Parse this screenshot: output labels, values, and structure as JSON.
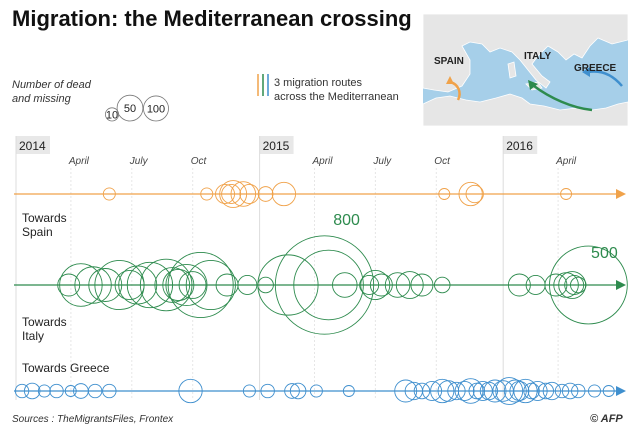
{
  "title": "Migration: the Mediterranean crossing",
  "source": "Sources : TheMigrantsFiles, Frontex",
  "credit": "© AFP",
  "legend": {
    "size_label_line1": "Number of dead",
    "size_label_line2": "and missing",
    "size_values": [
      10,
      50,
      100
    ],
    "routes_label_line1": "3 migration routes",
    "routes_label_line2": "across the Mediterranean"
  },
  "map": {
    "labels": [
      "SPAIN",
      "ITALY",
      "GREECE"
    ],
    "colors": {
      "sea": "#a6cfe9",
      "land": "#e6e6e6",
      "border": "#ffffff"
    }
  },
  "colors": {
    "spain": "#f0a24a",
    "italy": "#2e8b4e",
    "greece": "#3f8fce"
  },
  "chart_data": {
    "type": "scatter",
    "x_unit": "month",
    "x_range": [
      "2014-01",
      "2016-06"
    ],
    "axis": {
      "years": [
        {
          "label": "2014",
          "month": 0
        },
        {
          "label": "2015",
          "month": 12
        },
        {
          "label": "2016",
          "month": 24
        }
      ],
      "months": [
        {
          "label": "April",
          "month": 3
        },
        {
          "label": "July",
          "month": 6
        },
        {
          "label": "Oct",
          "month": 9
        },
        {
          "label": "April",
          "month": 15
        },
        {
          "label": "July",
          "month": 18
        },
        {
          "label": "Oct",
          "month": 21
        },
        {
          "label": "April",
          "month": 27
        }
      ]
    },
    "size_encoding": "circle area proportional to number of dead and missing",
    "series": [
      {
        "name": "Towards Spain",
        "label_line1": "Towards",
        "label_line2": "Spain",
        "color": "#f0a24a",
        "points": [
          {
            "month": 4.4,
            "value": 12
          },
          {
            "month": 9.2,
            "value": 12
          },
          {
            "month": 10.1,
            "value": 30
          },
          {
            "month": 10.4,
            "value": 30
          },
          {
            "month": 10.5,
            "value": 60
          },
          {
            "month": 11.0,
            "value": 50
          },
          {
            "month": 11.3,
            "value": 30
          },
          {
            "month": 12.1,
            "value": 18
          },
          {
            "month": 13.0,
            "value": 45
          },
          {
            "month": 20.9,
            "value": 10
          },
          {
            "month": 22.2,
            "value": 45
          },
          {
            "month": 22.4,
            "value": 25
          },
          {
            "month": 26.9,
            "value": 10
          }
        ]
      },
      {
        "name": "Towards Italy",
        "label_line1": "Towards",
        "label_line2": "Italy",
        "color": "#2e8b4e",
        "annotations": [
          {
            "text": "800",
            "month": 15.3
          },
          {
            "text": "500",
            "month": 28.0
          }
        ],
        "points": [
          {
            "month": 2.4,
            "value": 40
          },
          {
            "month": 3.0,
            "value": 150
          },
          {
            "month": 3.6,
            "value": 110
          },
          {
            "month": 4.2,
            "value": 90
          },
          {
            "month": 4.9,
            "value": 200
          },
          {
            "month": 5.4,
            "value": 70
          },
          {
            "month": 5.8,
            "value": 120
          },
          {
            "month": 6.4,
            "value": 170
          },
          {
            "month": 7.2,
            "value": 220
          },
          {
            "month": 7.5,
            "value": 100
          },
          {
            "month": 7.8,
            "value": 80
          },
          {
            "month": 8.2,
            "value": 140
          },
          {
            "month": 8.5,
            "value": 60
          },
          {
            "month": 8.9,
            "value": 350
          },
          {
            "month": 9.4,
            "value": 200
          },
          {
            "month": 10.2,
            "value": 40
          },
          {
            "month": 11.2,
            "value": 30
          },
          {
            "month": 12.1,
            "value": 20
          },
          {
            "month": 13.2,
            "value": 300
          },
          {
            "month": 15.0,
            "value": 800
          },
          {
            "month": 15.2,
            "value": 400
          },
          {
            "month": 16.0,
            "value": 50
          },
          {
            "month": 17.2,
            "value": 30
          },
          {
            "month": 17.5,
            "value": 70
          },
          {
            "month": 17.8,
            "value": 40
          },
          {
            "month": 18.6,
            "value": 50
          },
          {
            "month": 19.2,
            "value": 60
          },
          {
            "month": 19.8,
            "value": 40
          },
          {
            "month": 20.8,
            "value": 20
          },
          {
            "month": 24.6,
            "value": 40
          },
          {
            "month": 25.4,
            "value": 30
          },
          {
            "month": 26.4,
            "value": 40
          },
          {
            "month": 26.9,
            "value": 50
          },
          {
            "month": 27.2,
            "value": 60
          },
          {
            "month": 27.3,
            "value": 30
          },
          {
            "month": 27.5,
            "value": 20
          },
          {
            "month": 28.0,
            "value": 500
          }
        ]
      },
      {
        "name": "Towards Greece",
        "label_line1": "Towards Greece",
        "label_line2": "",
        "color": "#3f8fce",
        "points": [
          {
            "month": 0.1,
            "value": 15
          },
          {
            "month": 0.6,
            "value": 20
          },
          {
            "month": 1.2,
            "value": 12
          },
          {
            "month": 1.8,
            "value": 15
          },
          {
            "month": 2.5,
            "value": 10
          },
          {
            "month": 3.0,
            "value": 18
          },
          {
            "month": 3.7,
            "value": 15
          },
          {
            "month": 4.4,
            "value": 15
          },
          {
            "month": 8.4,
            "value": 45
          },
          {
            "month": 11.3,
            "value": 12
          },
          {
            "month": 12.2,
            "value": 15
          },
          {
            "month": 13.4,
            "value": 18
          },
          {
            "month": 13.7,
            "value": 20
          },
          {
            "month": 14.6,
            "value": 12
          },
          {
            "month": 16.2,
            "value": 10
          },
          {
            "month": 19.0,
            "value": 40
          },
          {
            "month": 19.4,
            "value": 25
          },
          {
            "month": 19.8,
            "value": 20
          },
          {
            "month": 20.3,
            "value": 30
          },
          {
            "month": 20.8,
            "value": 45
          },
          {
            "month": 21.1,
            "value": 35
          },
          {
            "month": 21.5,
            "value": 25
          },
          {
            "month": 21.9,
            "value": 30
          },
          {
            "month": 22.2,
            "value": 50
          },
          {
            "month": 22.5,
            "value": 20
          },
          {
            "month": 22.8,
            "value": 30
          },
          {
            "month": 23.1,
            "value": 25
          },
          {
            "month": 23.4,
            "value": 40
          },
          {
            "month": 23.8,
            "value": 35
          },
          {
            "month": 24.1,
            "value": 60
          },
          {
            "month": 24.4,
            "value": 40
          },
          {
            "month": 24.6,
            "value": 30
          },
          {
            "month": 24.9,
            "value": 45
          },
          {
            "month": 25.2,
            "value": 20
          },
          {
            "month": 25.5,
            "value": 30
          },
          {
            "month": 25.9,
            "value": 20
          },
          {
            "month": 26.2,
            "value": 25
          },
          {
            "month": 26.7,
            "value": 15
          },
          {
            "month": 27.1,
            "value": 20
          },
          {
            "month": 27.5,
            "value": 15
          },
          {
            "month": 28.3,
            "value": 12
          },
          {
            "month": 29.0,
            "value": 10
          }
        ]
      }
    ]
  }
}
